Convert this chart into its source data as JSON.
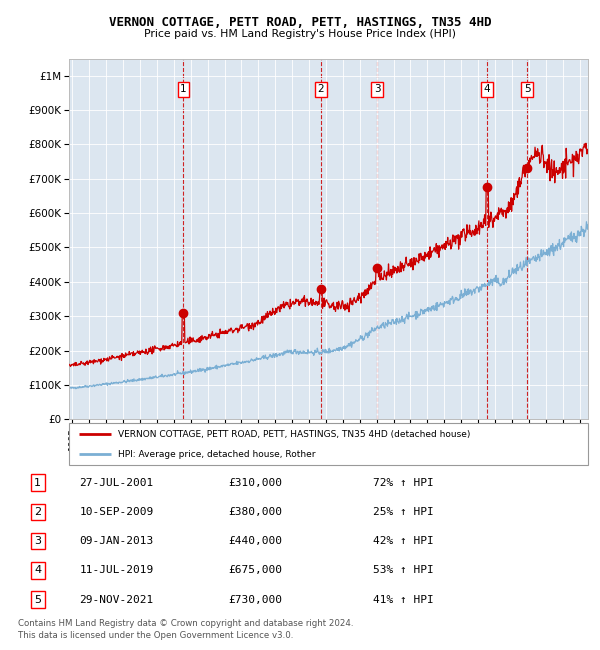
{
  "title": "VERNON COTTAGE, PETT ROAD, PETT, HASTINGS, TN35 4HD",
  "subtitle": "Price paid vs. HM Land Registry's House Price Index (HPI)",
  "ylabel_ticks": [
    "£0",
    "£100K",
    "£200K",
    "£300K",
    "£400K",
    "£500K",
    "£600K",
    "£700K",
    "£800K",
    "£900K",
    "£1M"
  ],
  "ytick_values": [
    0,
    100000,
    200000,
    300000,
    400000,
    500000,
    600000,
    700000,
    800000,
    900000,
    1000000
  ],
  "ylim": [
    0,
    1050000
  ],
  "xlim_start": 1994.8,
  "xlim_end": 2025.5,
  "background_color": "#dce6f0",
  "red_line_color": "#cc0000",
  "blue_line_color": "#7bafd4",
  "sale_marker_color": "#cc0000",
  "vline_color": "#cc0000",
  "sale_points": [
    {
      "num": 1,
      "date_dec": 2001.57,
      "price": 310000,
      "label": "1"
    },
    {
      "num": 2,
      "date_dec": 2009.69,
      "price": 380000,
      "label": "2"
    },
    {
      "num": 3,
      "date_dec": 2013.03,
      "price": 440000,
      "label": "3"
    },
    {
      "num": 4,
      "date_dec": 2019.53,
      "price": 675000,
      "label": "4"
    },
    {
      "num": 5,
      "date_dec": 2021.91,
      "price": 730000,
      "label": "5"
    }
  ],
  "legend_red_label": "VERNON COTTAGE, PETT ROAD, PETT, HASTINGS, TN35 4HD (detached house)",
  "legend_blue_label": "HPI: Average price, detached house, Rother",
  "footer_line1": "Contains HM Land Registry data © Crown copyright and database right 2024.",
  "footer_line2": "This data is licensed under the Open Government Licence v3.0.",
  "table_rows": [
    {
      "num": "1",
      "date": "27-JUL-2001",
      "price": "£310,000",
      "pct": "72% ↑ HPI"
    },
    {
      "num": "2",
      "date": "10-SEP-2009",
      "price": "£380,000",
      "pct": "25% ↑ HPI"
    },
    {
      "num": "3",
      "date": "09-JAN-2013",
      "price": "£440,000",
      "pct": "42% ↑ HPI"
    },
    {
      "num": "4",
      "date": "11-JUL-2019",
      "price": "£675,000",
      "pct": "53% ↑ HPI"
    },
    {
      "num": "5",
      "date": "29-NOV-2021",
      "price": "£730,000",
      "pct": "41% ↑ HPI"
    }
  ]
}
